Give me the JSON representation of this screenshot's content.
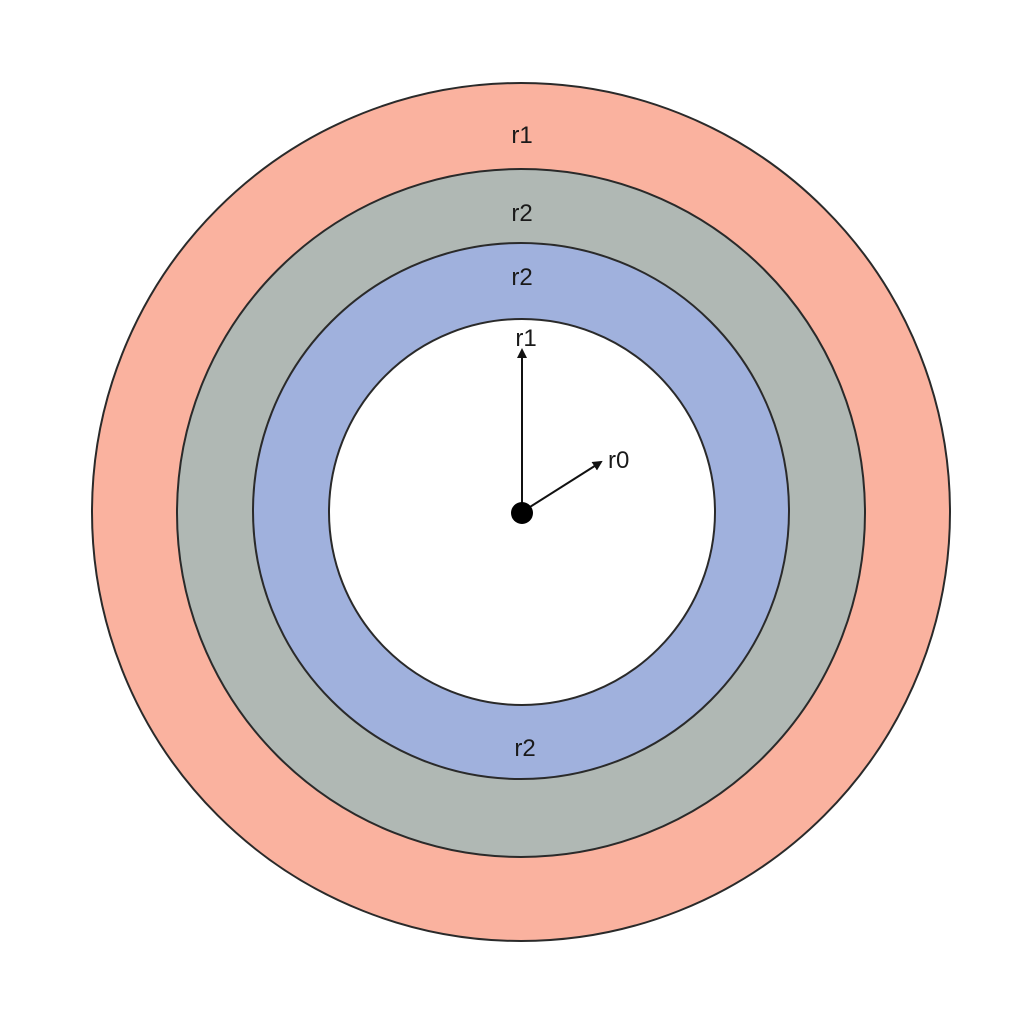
{
  "colors": {
    "outer_ring": "#fab29f",
    "middle_ring": "#b0b8b4",
    "inner_ring": "#a0b1dd",
    "core": "#ffffff",
    "stroke": "#2a2a2a"
  },
  "labels": {
    "outer_ring_top": "r1",
    "middle_ring_top": "r2",
    "inner_ring_top": "r2",
    "core_arrow_vertical": "r1",
    "core_arrow_diagonal": "r0",
    "inner_ring_bottom": "r2"
  }
}
